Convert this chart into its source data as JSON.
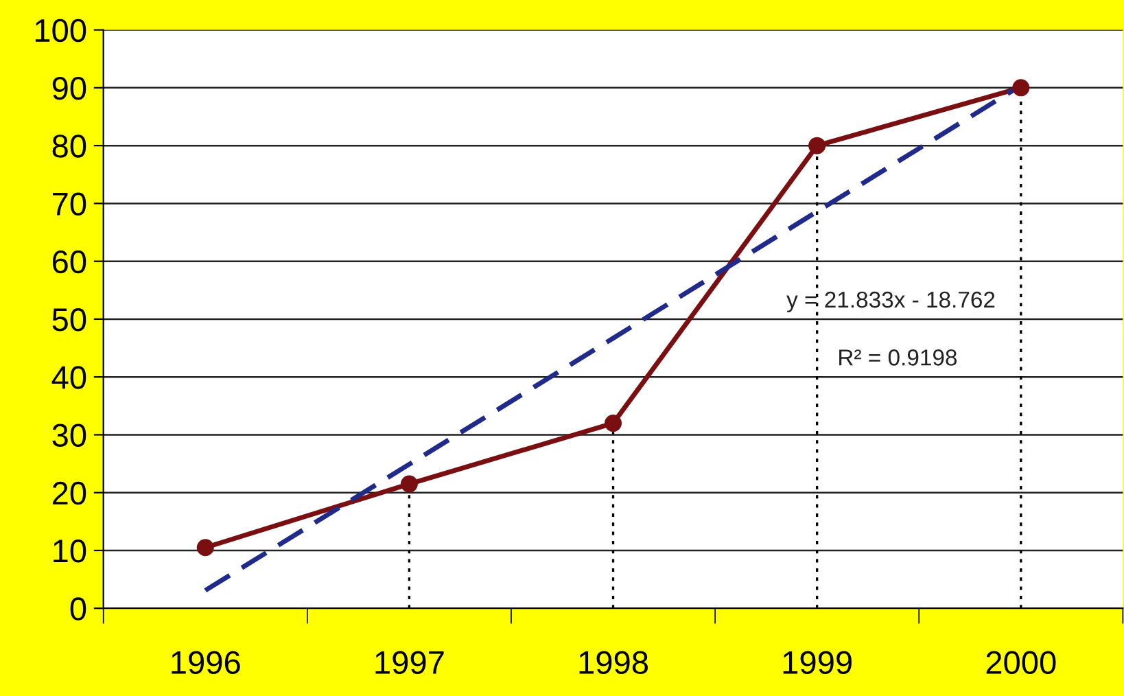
{
  "chart_data": {
    "type": "line",
    "categories": [
      "1996",
      "1997",
      "1998",
      "1999",
      "2000"
    ],
    "series": [
      {
        "color": "#7a0f12",
        "values": [
          10.5,
          21.5,
          32,
          80,
          90
        ],
        "marker": "circle",
        "line_style": "solid"
      },
      {
        "color": "#1f2a8a",
        "values": [
          3.1,
          24.9,
          46.7,
          68.6,
          90.4
        ],
        "marker": "none",
        "line_style": "dashed"
      }
    ],
    "ylim": [
      0,
      100
    ],
    "yticks": [
      0,
      10,
      20,
      30,
      40,
      50,
      60,
      70,
      80,
      90,
      100
    ],
    "grid": "y",
    "legend": false,
    "ref_lines": [
      {
        "axis": "x",
        "value": "1997",
        "line_style": "dotted"
      },
      {
        "axis": "x",
        "value": "1998",
        "line_style": "dotted"
      },
      {
        "axis": "x",
        "value": "1999",
        "line_style": "dotted"
      },
      {
        "axis": "x",
        "value": "2000",
        "line_style": "dotted"
      }
    ],
    "annotations": [
      "y = 21.833x - 18.762",
      "R² = 0.9198"
    ]
  }
}
